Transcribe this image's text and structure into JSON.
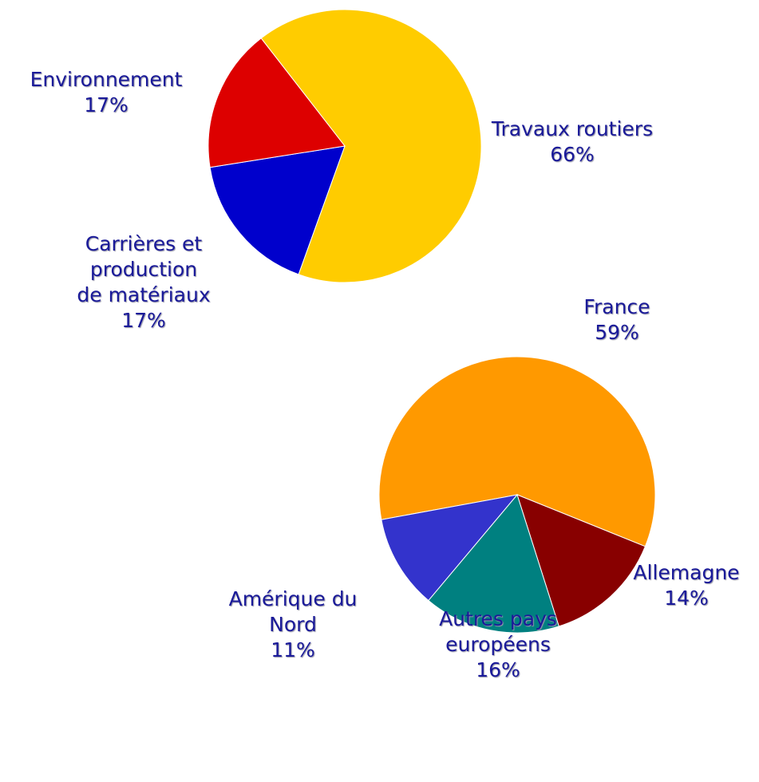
{
  "chart_data": [
    {
      "type": "pie",
      "categories": [
        "Travaux routiers",
        "Carrières et\nproduction\nde matériaux",
        "Environnement"
      ],
      "values": [
        66,
        17,
        17
      ],
      "value_labels": [
        "66%",
        "17%",
        "17%"
      ],
      "colors": [
        "#ffcc00",
        "#0000cc",
        "#dd0000"
      ]
    },
    {
      "type": "pie",
      "categories": [
        "France",
        "Allemagne",
        "Autres pays\neuropéens",
        "Amérique du\nNord"
      ],
      "values": [
        59,
        14,
        16,
        11
      ],
      "value_labels": [
        "59%",
        "14%",
        "16%",
        "11%"
      ],
      "colors": [
        "#ff9900",
        "#880000",
        "#008080",
        "#3333cc"
      ]
    }
  ]
}
